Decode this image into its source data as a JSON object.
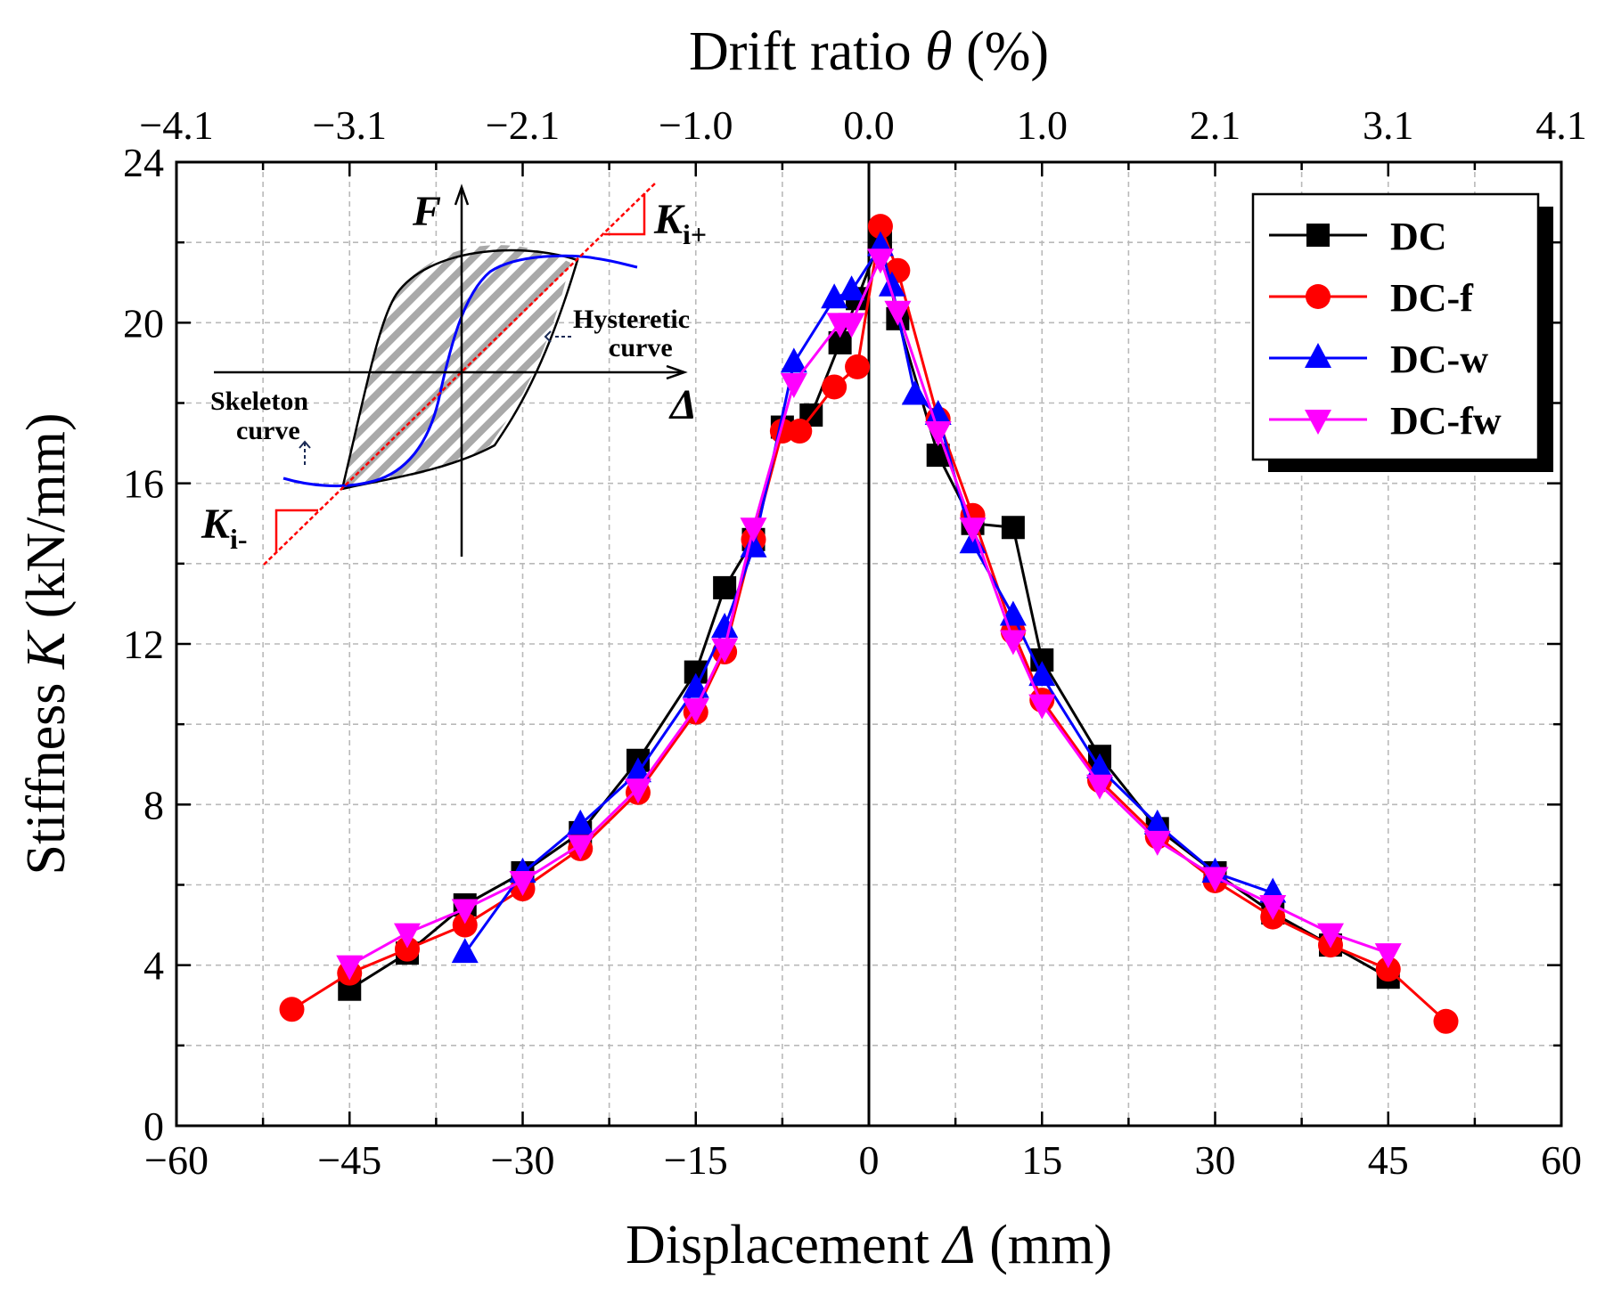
{
  "chart_data": {
    "type": "line",
    "xlabel_prefix": "Displacement ",
    "xlabel_symbol": "Δ",
    "xlabel_suffix": " (mm)",
    "ylabel_prefix": "Stiffness ",
    "ylabel_symbol": "K",
    "ylabel_suffix": " (kN/mm)",
    "top_xlabel_prefix": "Drift ratio ",
    "top_xlabel_symbol": "θ",
    "top_xlabel_suffix": " (%)",
    "xlim": [
      -60,
      60
    ],
    "ylim": [
      0,
      24
    ],
    "x_ticks": [
      -60,
      -45,
      -30,
      -15,
      0,
      15,
      30,
      45,
      60
    ],
    "x_tick_labels": [
      "−60",
      "−45",
      "−30",
      "−15",
      "0",
      "15",
      "30",
      "45",
      "60"
    ],
    "y_ticks": [
      0,
      4,
      8,
      12,
      16,
      20,
      24
    ],
    "y_tick_labels": [
      "0",
      "4",
      "8",
      "12",
      "16",
      "20",
      "24"
    ],
    "top_ticks": [
      -60,
      -45,
      -30,
      -15,
      0,
      15,
      30,
      45,
      60
    ],
    "top_tick_labels": [
      "−4.1",
      "−3.1",
      "−2.1",
      "−1.0",
      "0.0",
      "1.0",
      "2.1",
      "3.1",
      "4.1"
    ],
    "grid": true,
    "legend_position": "top-right",
    "series": [
      {
        "name": "DC",
        "color": "#000000",
        "marker": "square",
        "x": [
          -45,
          -40,
          -35,
          -30,
          -25,
          -20,
          -15,
          -12.5,
          -10,
          -7.5,
          -5,
          -2.5,
          -1,
          1,
          2.5,
          6,
          9,
          12.5,
          15,
          20,
          25,
          30,
          35,
          40,
          45
        ],
        "y": [
          3.4,
          4.3,
          5.5,
          6.3,
          7.3,
          9.1,
          11.3,
          13.4,
          14.6,
          17.4,
          17.7,
          19.5,
          20.6,
          22.1,
          20.1,
          16.7,
          15.0,
          14.9,
          11.6,
          9.2,
          7.4,
          6.3,
          5.3,
          4.5,
          3.7
        ]
      },
      {
        "name": "DC-f",
        "color": "#ff0000",
        "marker": "circle",
        "x": [
          -50,
          -45,
          -40,
          -35,
          -30,
          -25,
          -20,
          -15,
          -12.5,
          -10,
          -7.5,
          -6,
          -3,
          -1,
          1,
          2.5,
          6,
          9,
          12.5,
          15,
          20,
          25,
          30,
          35,
          40,
          45,
          50
        ],
        "y": [
          2.9,
          3.8,
          4.4,
          5.0,
          5.9,
          6.9,
          8.3,
          10.3,
          11.8,
          14.6,
          17.3,
          17.3,
          18.4,
          18.9,
          22.4,
          21.3,
          17.6,
          15.2,
          12.3,
          10.6,
          8.6,
          7.2,
          6.1,
          5.2,
          4.5,
          3.9,
          2.6
        ]
      },
      {
        "name": "DC-w",
        "color": "#0000ff",
        "marker": "triangle-up",
        "x": [
          -35,
          -30,
          -25,
          -20,
          -15,
          -12.5,
          -10,
          -6.5,
          -3,
          -1.5,
          1,
          2,
          4,
          6,
          9,
          12.5,
          15,
          20,
          25,
          30,
          35
        ],
        "y": [
          4.3,
          6.3,
          7.5,
          8.8,
          10.9,
          12.4,
          14.4,
          19.0,
          20.6,
          20.8,
          21.9,
          20.9,
          18.2,
          17.7,
          14.5,
          12.7,
          11.2,
          8.9,
          7.5,
          6.3,
          5.8
        ]
      },
      {
        "name": "DC-fw",
        "color": "#ff00ff",
        "marker": "triangle-down",
        "x": [
          -45,
          -40,
          -35,
          -30,
          -25,
          -20,
          -15,
          -12.5,
          -10,
          -6.5,
          -2.5,
          -1.5,
          1,
          2.5,
          6,
          9,
          12.5,
          15,
          20,
          25,
          30,
          35,
          40,
          45
        ],
        "y": [
          4.0,
          4.8,
          5.4,
          6.1,
          7.0,
          8.4,
          10.4,
          11.9,
          14.9,
          18.5,
          20.0,
          20.0,
          21.6,
          20.3,
          17.3,
          14.9,
          12.1,
          10.5,
          8.5,
          7.1,
          6.2,
          5.5,
          4.8,
          4.3
        ]
      }
    ],
    "inset": {
      "force_label": "F",
      "disp_label": "Δ",
      "k_plus_main": "K",
      "k_plus_sub": "i+",
      "k_minus_main": "K",
      "k_minus_sub": "i-",
      "hysteretic_line1": "Hysteretic",
      "hysteretic_line2": "curve",
      "skeleton_line1": "Skeleton",
      "skeleton_line2": "curve"
    }
  }
}
